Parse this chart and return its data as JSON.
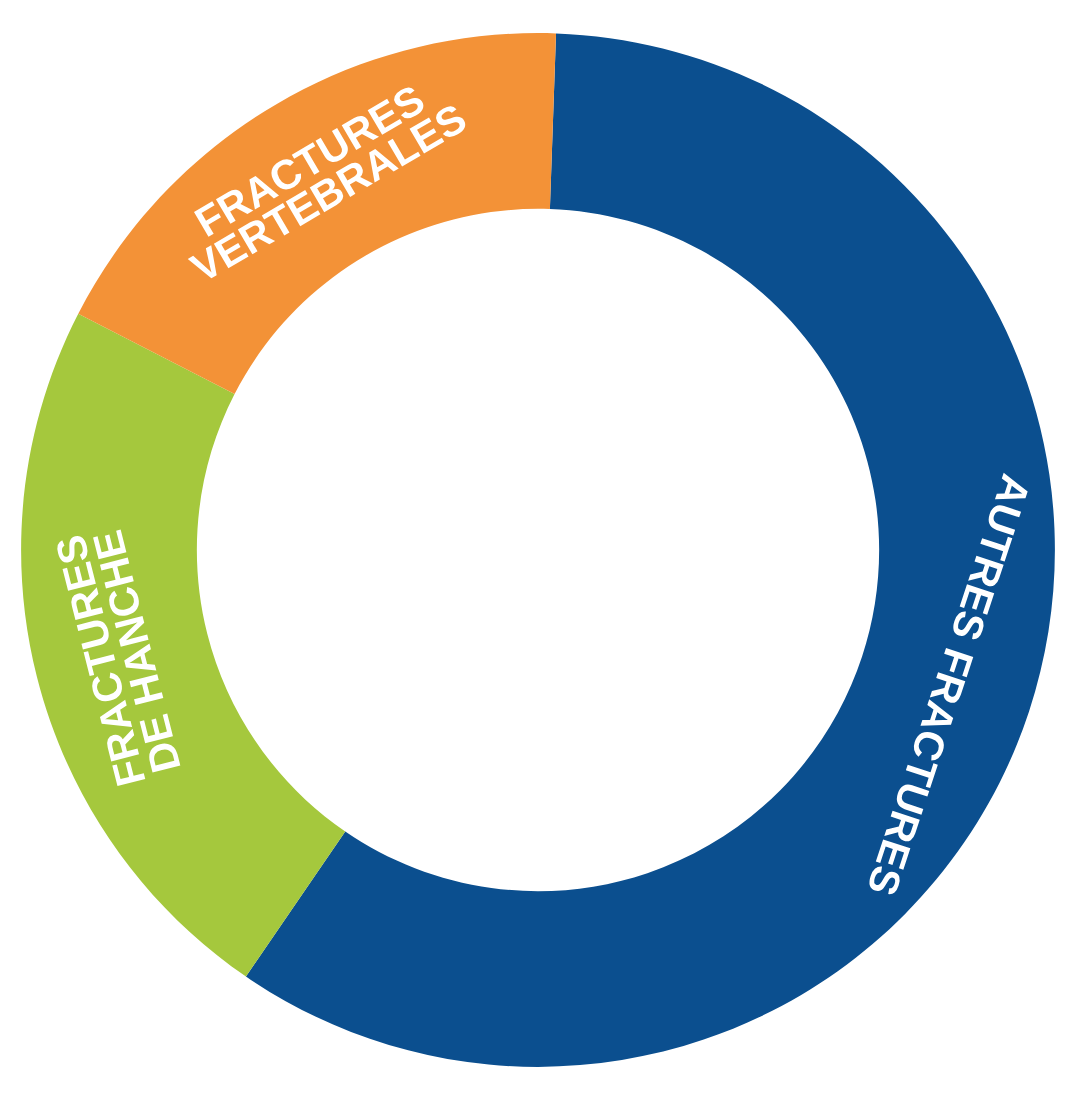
{
  "chart_data": {
    "type": "donut",
    "categories": [
      "AUTRES FRACTURES",
      "FRACTURES\nDE HANCHE",
      "FRACTURES\nVERTEBRALES"
    ],
    "values": [
      59,
      23,
      18
    ],
    "colors": [
      "#0b4f8f",
      "#a5c83d",
      "#f39237"
    ]
  }
}
